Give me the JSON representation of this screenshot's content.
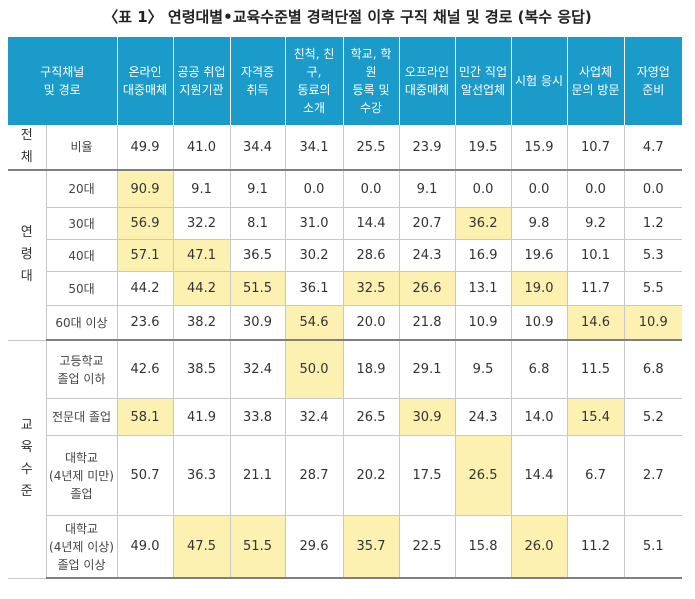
{
  "title": "〈표 1〉 연령대별•교육수준별 경력단절 이후 구직 채널 및 경로 (복수 응답)",
  "columns": [
    "구직채널\n및 경로",
    "온라인\n대중매체",
    "공공 취업\n지원기관",
    "자격증\n취득",
    "친척, 친구,\n동료의\n소개",
    "학교, 학원\n등록 및\n수강",
    "오프라인\n대중매체",
    "민간 직업\n알선업체",
    "시험 응시",
    "사업체\n문의 방문",
    "자영업\n준비"
  ],
  "groups": [
    {
      "label": "전\n체",
      "rows": [
        {
          "label": "비율",
          "values": [
            "49.9",
            "41.0",
            "34.4",
            "34.1",
            "25.5",
            "23.9",
            "19.5",
            "15.9",
            "10.7",
            "4.7"
          ],
          "highlight": []
        }
      ]
    },
    {
      "label": "연\n령\n대",
      "rows": [
        {
          "label": "20대",
          "values": [
            "90.9",
            "9.1",
            "9.1",
            "0.0",
            "0.0",
            "9.1",
            "0.0",
            "0.0",
            "0.0",
            "0.0"
          ],
          "highlight": [
            0
          ]
        },
        {
          "label": "30대",
          "values": [
            "56.9",
            "32.2",
            "8.1",
            "31.0",
            "14.4",
            "20.7",
            "36.2",
            "9.8",
            "9.2",
            "1.2"
          ],
          "highlight": [
            0,
            6
          ]
        },
        {
          "label": "40대",
          "values": [
            "57.1",
            "47.1",
            "36.5",
            "30.2",
            "28.6",
            "24.3",
            "16.9",
            "19.6",
            "10.1",
            "5.3"
          ],
          "highlight": [
            0,
            1
          ]
        },
        {
          "label": "50대",
          "values": [
            "44.2",
            "44.2",
            "51.5",
            "36.1",
            "32.5",
            "26.6",
            "13.1",
            "19.0",
            "11.7",
            "5.5"
          ],
          "highlight": [
            1,
            2,
            4,
            5,
            7
          ]
        },
        {
          "label": "60대 이상",
          "values": [
            "23.6",
            "38.2",
            "30.9",
            "54.6",
            "20.0",
            "21.8",
            "10.9",
            "10.9",
            "14.6",
            "10.9"
          ],
          "highlight": [
            3,
            8,
            9
          ]
        }
      ]
    },
    {
      "label": "교\n육\n수\n준",
      "rows": [
        {
          "label": "고등학교\n졸업 이하",
          "values": [
            "42.6",
            "38.5",
            "32.4",
            "50.0",
            "18.9",
            "29.1",
            "9.5",
            "6.8",
            "11.5",
            "6.8"
          ],
          "highlight": [
            3
          ]
        },
        {
          "label": "전문대 졸업",
          "values": [
            "58.1",
            "41.9",
            "33.8",
            "32.4",
            "26.5",
            "30.9",
            "24.3",
            "14.0",
            "15.4",
            "5.2"
          ],
          "highlight": [
            0,
            5,
            8
          ]
        },
        {
          "label": "대학교\n(4년제 미만)\n졸업",
          "values": [
            "50.7",
            "36.3",
            "21.1",
            "28.7",
            "20.2",
            "17.5",
            "26.5",
            "14.4",
            "6.7",
            "2.7"
          ],
          "highlight": [
            6
          ]
        },
        {
          "label": "대학교\n(4년제 이상)\n졸업 이상",
          "values": [
            "49.0",
            "47.5",
            "51.5",
            "29.6",
            "35.7",
            "22.5",
            "15.8",
            "26.0",
            "11.2",
            "5.1"
          ],
          "highlight": [
            1,
            2,
            4,
            7
          ]
        }
      ]
    }
  ]
}
